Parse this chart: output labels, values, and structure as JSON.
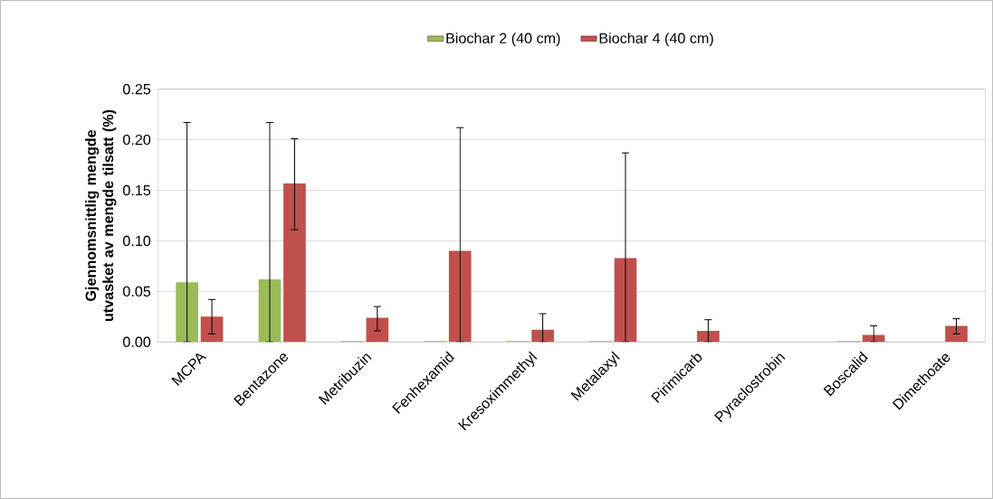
{
  "chart_data": {
    "type": "bar",
    "ylabel": "Gjennomsnittlig mengde utvasket av mengde tilsatt  (%)",
    "categories": [
      "MCPA",
      "Bentazone",
      "Metribuzin",
      "Fenhexamid",
      "Kresoximmethyl",
      "Metalaxyl",
      "Pirimicarb",
      "Pyraclostrobin",
      "Boscalid",
      "Dimethoate"
    ],
    "series": [
      {
        "name": "Biochar 2 (40 cm)",
        "color": "#9bbb59",
        "values": [
          0.059,
          0.062,
          0.001,
          0.001,
          0.001,
          0.001,
          0,
          0,
          0.001,
          0
        ],
        "errors": [
          [
            0,
            0.217
          ],
          [
            0,
            0.217
          ],
          null,
          null,
          null,
          null,
          null,
          null,
          null,
          null
        ]
      },
      {
        "name": "Biochar 4 (40 cm)",
        "color": "#c0504d",
        "values": [
          0.025,
          0.157,
          0.024,
          0.09,
          0.012,
          0.083,
          0.011,
          0,
          0.007,
          0.016
        ],
        "errors": [
          [
            0.008,
            0.042
          ],
          [
            0.111,
            0.201
          ],
          [
            0.011,
            0.035
          ],
          [
            0,
            0.212
          ],
          [
            0,
            0.028
          ],
          [
            0,
            0.187
          ],
          [
            0,
            0.022
          ],
          null,
          [
            0,
            0.016
          ],
          [
            0.008,
            0.023
          ]
        ]
      }
    ],
    "ylim": [
      0,
      0.25
    ],
    "yticks": [
      {
        "value": 0,
        "label": "0.00"
      },
      {
        "value": 0.05,
        "label": "0.05"
      },
      {
        "value": 0.1,
        "label": "0.10"
      },
      {
        "value": 0.15,
        "label": "0.15"
      },
      {
        "value": 0.2,
        "label": "0.20"
      },
      {
        "value": 0.25,
        "label": "0.25"
      }
    ],
    "grid": "y",
    "legend": "top"
  }
}
